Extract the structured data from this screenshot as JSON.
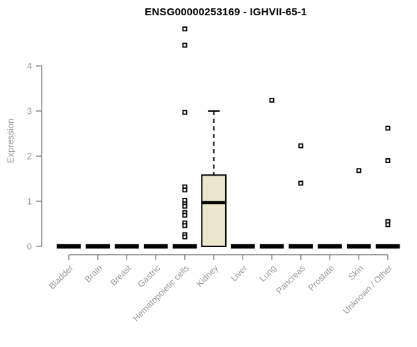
{
  "chart_data": {
    "type": "boxplot",
    "title": "ENSG00000253169 - IGHVII-65-1",
    "ylabel": "Expression",
    "xlabel": "",
    "ylim": [
      0,
      4.9
    ],
    "yticks": [
      0,
      1,
      2,
      3,
      4
    ],
    "grid": false,
    "legend": "none",
    "categories": [
      "Bladder",
      "Brain",
      "Breast",
      "Gastric",
      "Hematopoietic cells",
      "Kidney",
      "Liver",
      "Lung",
      "Pancreas",
      "Prostate",
      "Skin",
      "Unknown / Other"
    ],
    "series": [
      {
        "category": "Bladder",
        "whisker_low": 0,
        "q1": 0,
        "median": 0,
        "q3": 0,
        "whisker_high": 0,
        "outliers": []
      },
      {
        "category": "Brain",
        "whisker_low": 0,
        "q1": 0,
        "median": 0,
        "q3": 0,
        "whisker_high": 0,
        "outliers": []
      },
      {
        "category": "Breast",
        "whisker_low": 0,
        "q1": 0,
        "median": 0,
        "q3": 0,
        "whisker_high": 0,
        "outliers": []
      },
      {
        "category": "Gastric",
        "whisker_low": 0,
        "q1": 0,
        "median": 0,
        "q3": 0,
        "whisker_high": 0,
        "outliers": []
      },
      {
        "category": "Hematopoietic cells",
        "whisker_low": 0,
        "q1": 0,
        "median": 0,
        "q3": 0,
        "whisker_high": 0,
        "outliers": [
          4.82,
          4.46,
          2.97,
          1.32,
          1.25,
          1.02,
          0.94,
          0.89,
          0.75,
          0.69,
          0.52,
          0.46,
          0.26,
          0.21
        ]
      },
      {
        "category": "Kidney",
        "whisker_low": 0,
        "q1": 0,
        "median": 0.97,
        "q3": 1.58,
        "whisker_high": 3.0,
        "outliers": []
      },
      {
        "category": "Liver",
        "whisker_low": 0,
        "q1": 0,
        "median": 0,
        "q3": 0,
        "whisker_high": 0,
        "outliers": []
      },
      {
        "category": "Lung",
        "whisker_low": 0,
        "q1": 0,
        "median": 0,
        "q3": 0,
        "whisker_high": 0,
        "outliers": [
          3.24
        ]
      },
      {
        "category": "Pancreas",
        "whisker_low": 0,
        "q1": 0,
        "median": 0,
        "q3": 0,
        "whisker_high": 0,
        "outliers": [
          2.23,
          1.4
        ]
      },
      {
        "category": "Prostate",
        "whisker_low": 0,
        "q1": 0,
        "median": 0,
        "q3": 0,
        "whisker_high": 0,
        "outliers": []
      },
      {
        "category": "Skin",
        "whisker_low": 0,
        "q1": 0,
        "median": 0,
        "q3": 0,
        "whisker_high": 0,
        "outliers": [
          1.68
        ]
      },
      {
        "category": "Unknown / Other",
        "whisker_low": 0,
        "q1": 0,
        "median": 0,
        "q3": 0,
        "whisker_high": 0,
        "outliers": [
          2.62,
          1.9,
          0.55,
          0.48
        ]
      }
    ],
    "colors": {
      "box_fill": "#ECE7CC",
      "box_stroke": "#000000",
      "median": "#000000",
      "whisker": "#000000",
      "outlier": "#000000",
      "axis": "#7d7d7d",
      "tick_label": "#979797",
      "title": "#000000",
      "background": "#ffffff"
    }
  }
}
